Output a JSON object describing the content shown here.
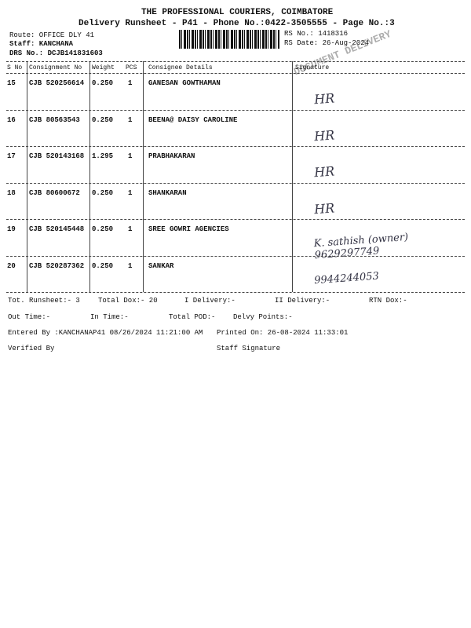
{
  "header": {
    "company": "THE PROFESSIONAL COURIERS, COIMBATORE",
    "subtitle": "Delivery Runsheet - P41 - Phone No.:0422-3505555 - Page No.:3",
    "route": "Route: OFFICE DLY 41",
    "staff": "Staff: KANCHANA",
    "drs": "DRS No.: DCJB141831603",
    "rs_no": "RS No.: 1418316",
    "rs_date": "RS Date: 26-Aug-2024",
    "stamp": "DOCUMENT DELIVERY"
  },
  "table": {
    "columns": [
      "S No",
      "Consignment No",
      "Weight",
      "PCS",
      "Consignee Details",
      "Signature"
    ],
    "rows": [
      [
        "15",
        "CJB 520256614",
        "0.250",
        "1",
        "GANESAN GOWTHAMAN",
        "HR"
      ],
      [
        "16",
        "CJB 80563543",
        "0.250",
        "1",
        "BEENA@ DAISY CAROLINE",
        "HR"
      ],
      [
        "17",
        "CJB 520143168",
        "1.295",
        "1",
        "PRABHAKARAN",
        "HR"
      ],
      [
        "18",
        "CJB 80600672",
        "0.250",
        "1",
        "SHANKARAN",
        "HR"
      ],
      [
        "19",
        "CJB 520145448",
        "0.250",
        "1",
        "SREE GOWRI AGENCIES",
        "K. sathish (owner) 9629297749"
      ],
      [
        "20",
        "CJB 520287362",
        "0.250",
        "1",
        "SANKAR",
        "9944244053"
      ]
    ]
  },
  "footer": {
    "line1": [
      "Tot. Runsheet:- 3",
      "Total Dox:-  20",
      "I Delivery:-",
      "II Delivery:-",
      "RTN Dox:-"
    ],
    "line2": [
      "Out Time:-",
      "In Time:-",
      "Total POD:-",
      "Delvy Points:-"
    ],
    "entered": "Entered By :KANCHANAP41 08/26/2024 11:21:00 AM",
    "printed": "Printed On: 26-08-2024 11:33:01",
    "verified": "Verified By",
    "staff_signature": "Staff Signature"
  }
}
